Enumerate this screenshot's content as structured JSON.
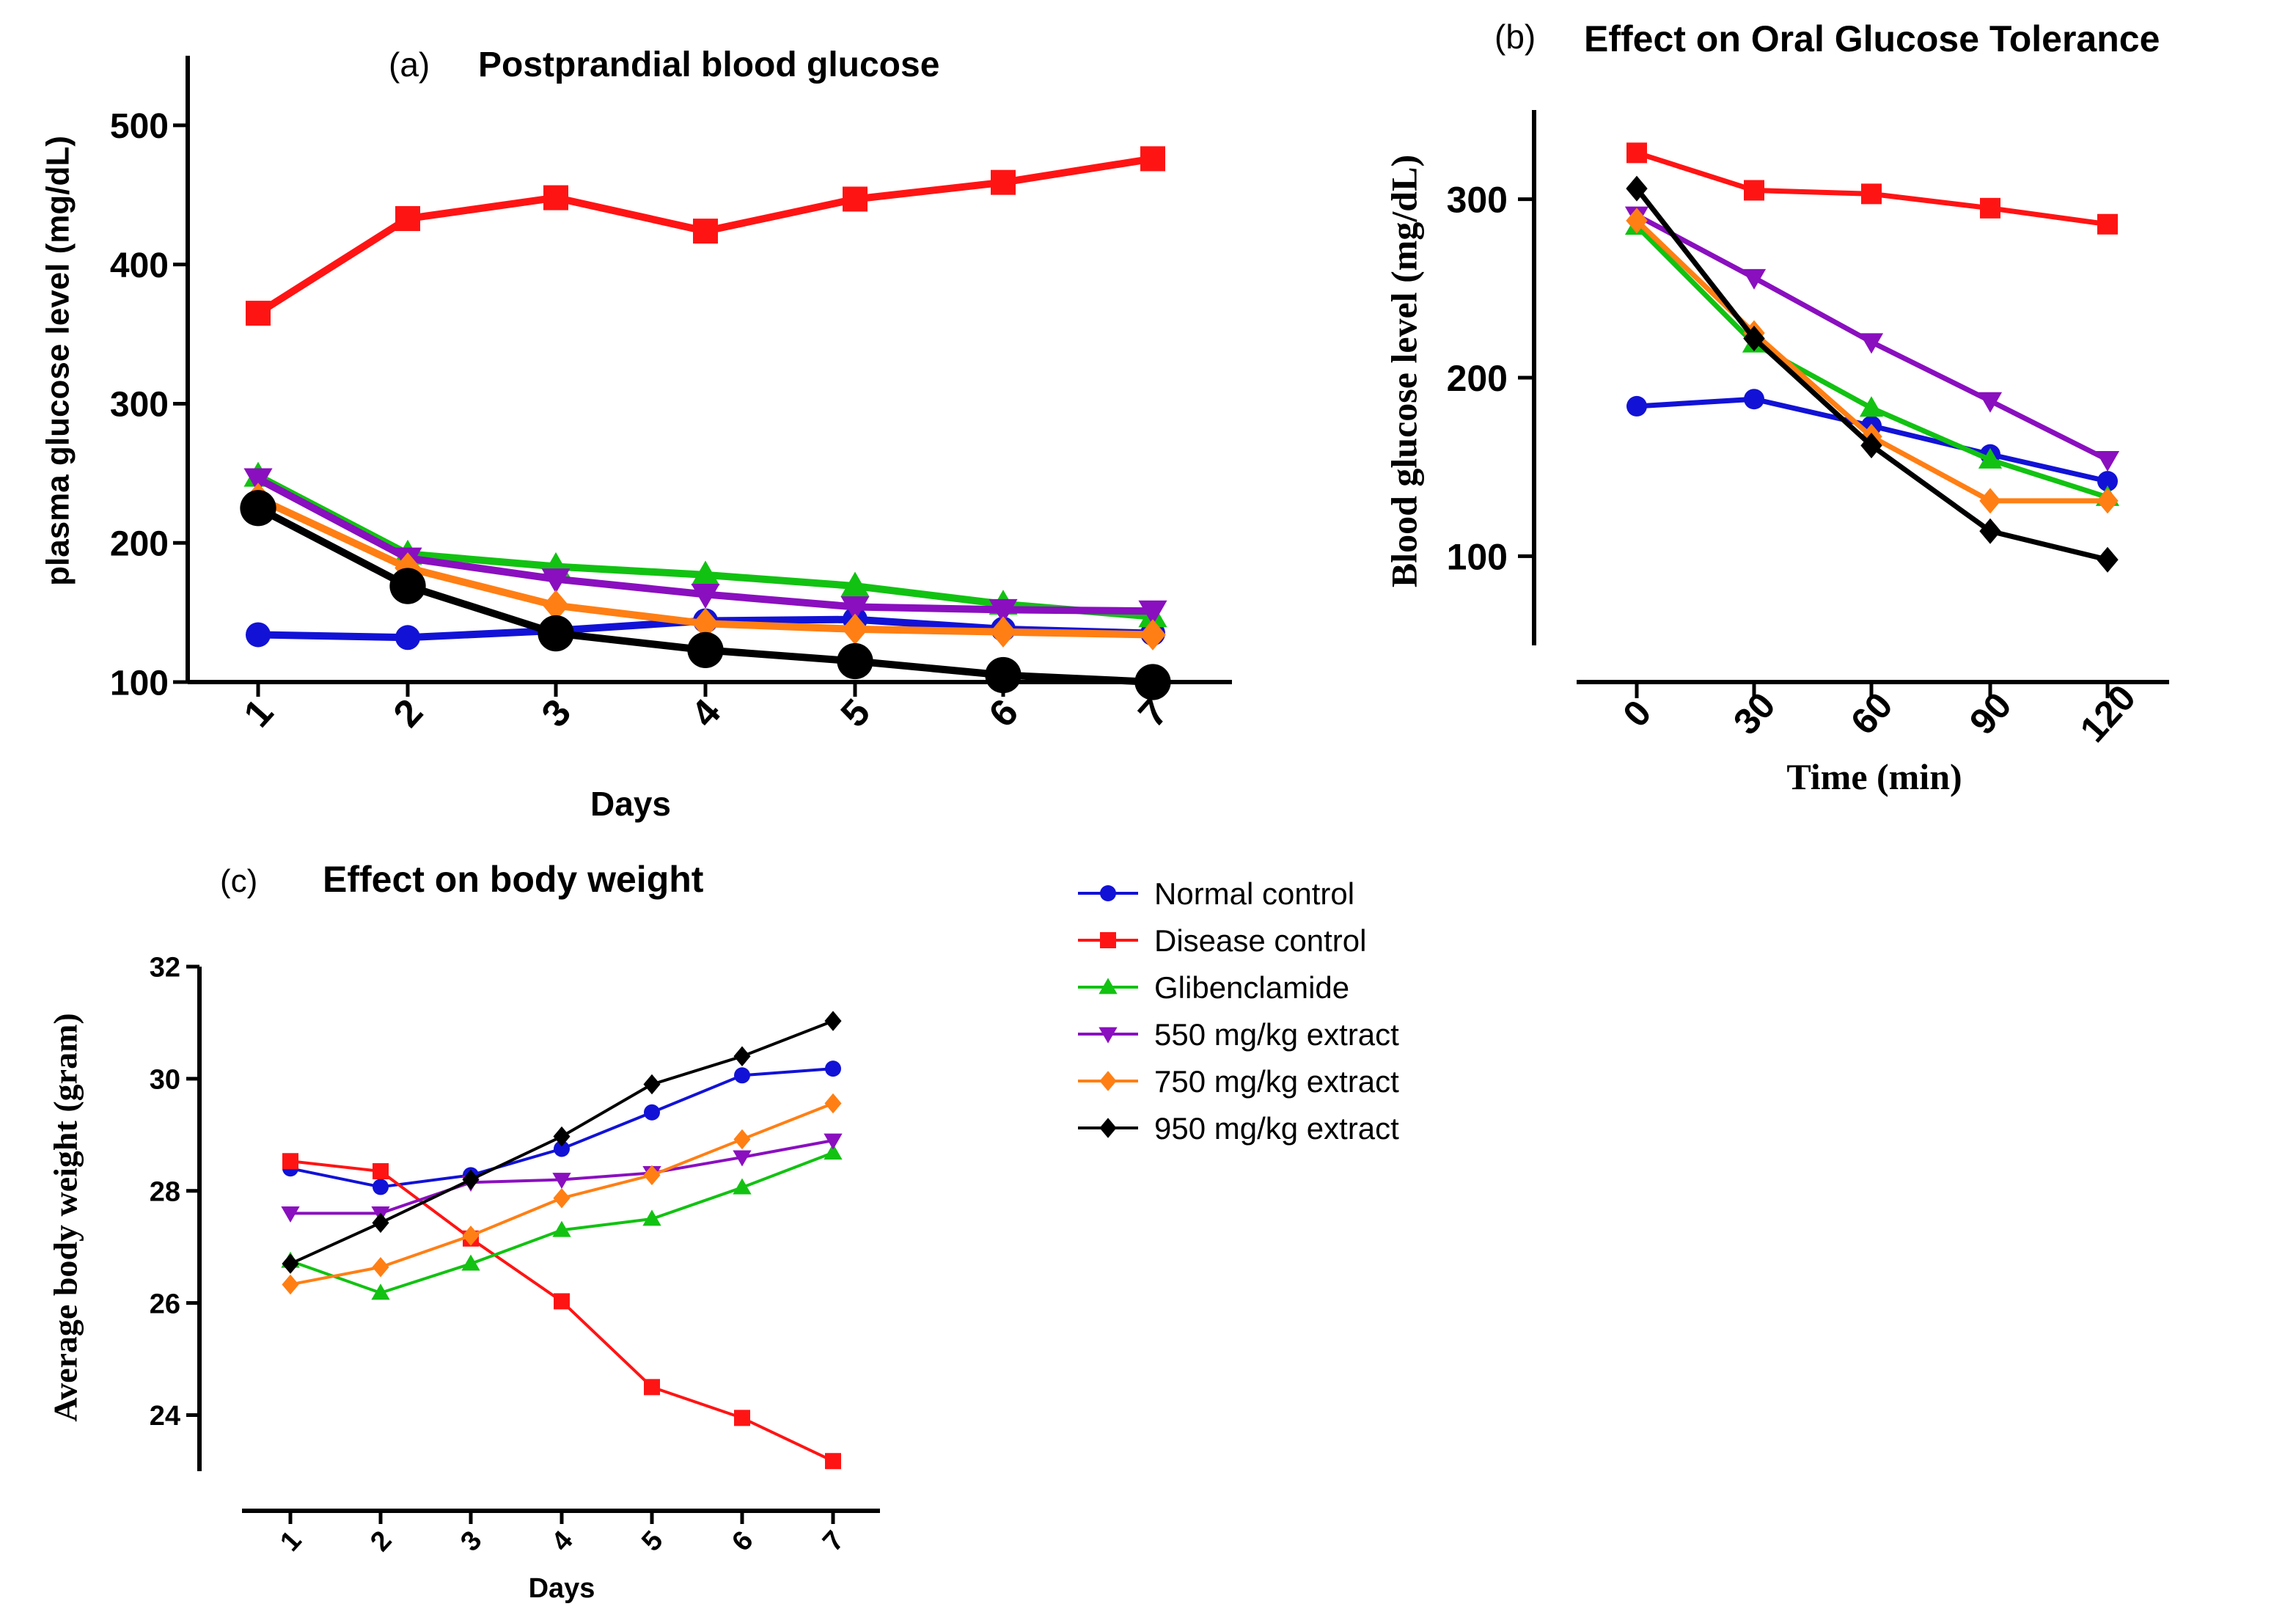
{
  "series_styles": [
    {
      "name": "Normal control",
      "color": "#1212d6",
      "marker": "circle"
    },
    {
      "name": "Disease control",
      "color": "#ff1414",
      "marker": "square"
    },
    {
      "name": "Glibenclamide",
      "color": "#12c212",
      "marker": "triangle-up"
    },
    {
      "name": "550 mg/kg extract",
      "color": "#8a0fbf",
      "marker": "triangle-down"
    },
    {
      "name": "750 mg/kg extract",
      "color": "#ff7f14",
      "marker": "diamond"
    },
    {
      "name": "950 mg/kg extract",
      "color": "#000000",
      "marker": "diamond"
    }
  ],
  "legend": {
    "entries": [
      "Normal control",
      "Disease control",
      "Glibenclamide",
      "550 mg/kg extract",
      "750 mg/kg extract",
      "950 mg/kg extract"
    ],
    "placement": "right of panel c"
  },
  "chart_data": [
    {
      "type": "line",
      "panel_label": "(a)",
      "title": "Postprandial blood glucose",
      "xlabel": "Days",
      "ylabel": "plasma glucose level (mg/dL)",
      "categories": [
        "1",
        "2",
        "3",
        "4",
        "5",
        "6",
        "7"
      ],
      "ylim": [
        100,
        550
      ],
      "yticks": [
        100,
        200,
        300,
        400,
        500
      ],
      "series": [
        {
          "name": "Normal control",
          "values": [
            134,
            132,
            137,
            144,
            145,
            138,
            135
          ]
        },
        {
          "name": "Disease control",
          "values": [
            365,
            433,
            448,
            424,
            447,
            459,
            476
          ]
        },
        {
          "name": "Glibenclamide",
          "values": [
            248,
            192,
            183,
            177,
            169,
            156,
            147
          ]
        },
        {
          "name": "550 mg/kg extract",
          "values": [
            246,
            189,
            174,
            163,
            154,
            152,
            151
          ]
        },
        {
          "name": "750 mg/kg extract",
          "values": [
            232,
            182,
            155,
            142,
            138,
            136,
            134
          ]
        },
        {
          "name": "950 mg/kg extract",
          "values": [
            225,
            169,
            135,
            123,
            115,
            105,
            100
          ]
        }
      ]
    },
    {
      "type": "line",
      "panel_label": "(b)",
      "title": "Effect on Oral Glucose Tolerance",
      "xlabel": "Time (min)",
      "ylabel": "Blood glucose level (mg/dL)",
      "categories": [
        "0",
        "30",
        "60",
        "90",
        "120"
      ],
      "ylim": [
        50,
        350
      ],
      "yticks": [
        100,
        200,
        300
      ],
      "series": [
        {
          "name": "Normal control",
          "values": [
            184,
            188,
            173,
            157,
            142
          ]
        },
        {
          "name": "Disease control",
          "values": [
            326,
            305,
            303,
            295,
            286
          ]
        },
        {
          "name": "Glibenclamide",
          "values": [
            285,
            219,
            183,
            154,
            133
          ]
        },
        {
          "name": "550 mg/kg extract",
          "values": [
            291,
            256,
            220,
            187,
            154
          ]
        },
        {
          "name": "750 mg/kg extract",
          "values": [
            288,
            225,
            167,
            131,
            131
          ]
        },
        {
          "name": "950 mg/kg extract",
          "values": [
            306,
            222,
            162,
            114,
            98
          ]
        }
      ]
    },
    {
      "type": "line",
      "panel_label": "(c)",
      "title": "Effect on body weight",
      "xlabel": "Days",
      "ylabel": "Average body weight (gram)",
      "categories": [
        "1",
        "2",
        "3",
        "4",
        "5",
        "6",
        "7"
      ],
      "ylim": [
        23,
        32
      ],
      "yticks": [
        24,
        26,
        28,
        30,
        32
      ],
      "series": [
        {
          "name": "Normal control",
          "values": [
            28.4,
            28.07,
            28.28,
            28.75,
            29.4,
            30.06,
            30.18
          ]
        },
        {
          "name": "Disease control",
          "values": [
            28.53,
            28.35,
            27.15,
            26.03,
            24.5,
            23.95,
            23.18
          ]
        },
        {
          "name": "Glibenclamide",
          "values": [
            26.75,
            26.18,
            26.7,
            27.3,
            27.5,
            28.06,
            28.68
          ]
        },
        {
          "name": "550 mg/kg extract",
          "values": [
            27.6,
            27.6,
            28.15,
            28.2,
            28.32,
            28.6,
            28.9
          ]
        },
        {
          "name": "750 mg/kg extract",
          "values": [
            26.33,
            26.64,
            27.2,
            27.87,
            28.28,
            28.92,
            29.56
          ]
        },
        {
          "name": "950 mg/kg extract",
          "values": [
            26.7,
            27.43,
            28.2,
            28.97,
            29.9,
            30.4,
            31.03
          ]
        }
      ]
    }
  ]
}
